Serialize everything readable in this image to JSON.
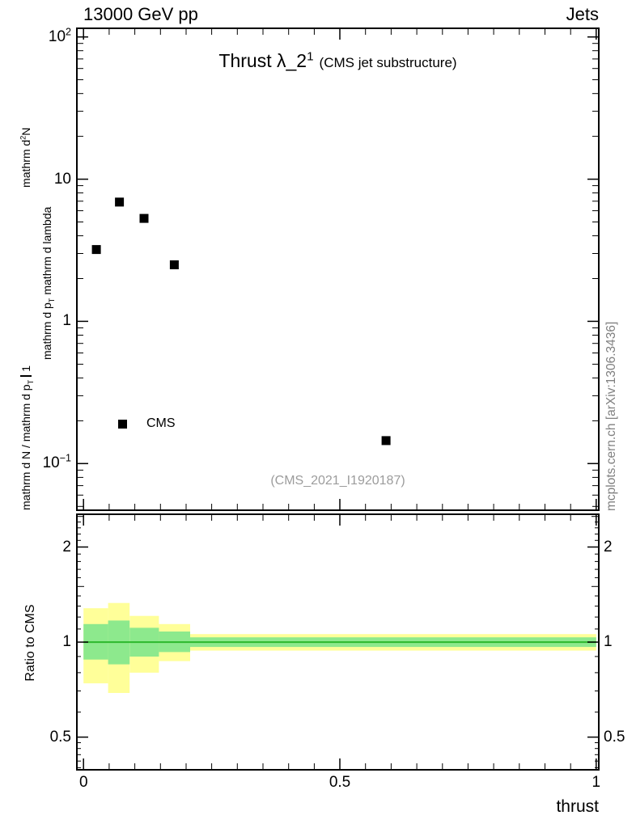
{
  "header": {
    "left": "13000 GeV pp",
    "right": "Jets"
  },
  "main_panel": {
    "title": "Thrust λ_2^{1}",
    "subtitle": "(CMS jet substructure)",
    "legend_label": "CMS",
    "watermark": "(CMS_2021_I1920187)"
  },
  "yaxis_label": {
    "frac1_num": "1",
    "frac1_den": "mathrm d N / mathrm d p_{T}",
    "frac2_num": "mathrm d^{2}N",
    "frac2_den": "mathrm d p_{T} mathrm d lambda"
  },
  "ratio_panel": {
    "ylabel": "Ratio to CMS"
  },
  "credit": "mcplots.cern.ch [arXiv:1306.3436]",
  "xaxis_title": "thrust",
  "chart_data": {
    "type": "scatter",
    "title": "Thrust λ_2^1 (CMS jet substructure)",
    "xlabel": "thrust",
    "ylabel": "1 / (dN/dp_T) · d²N / (dp_T dλ)",
    "legend": [
      "CMS"
    ],
    "xlim": [
      -0.013,
      1.005
    ],
    "x_ticks": [
      {
        "v": 0,
        "label": "0"
      },
      {
        "v": 0.5,
        "label": "0.5"
      },
      {
        "v": 1,
        "label": "1"
      }
    ],
    "main": {
      "yscale": "log",
      "ylim": [
        0.047,
        115
      ],
      "y_ticks": [
        {
          "v": 100,
          "label": "10^{2}"
        },
        {
          "v": 10,
          "label": "10"
        },
        {
          "v": 1,
          "label": "1"
        },
        {
          "v": 0.1,
          "label": "10^{−1}"
        }
      ],
      "series": [
        {
          "name": "CMS",
          "marker": "filled-square",
          "points": [
            [
              0.025,
              3.2
            ],
            [
              0.07,
              6.9
            ],
            [
              0.118,
              5.3
            ],
            [
              0.177,
              2.5
            ],
            [
              0.59,
              0.145
            ]
          ]
        }
      ]
    },
    "ratio": {
      "yscale": "log",
      "ylim": [
        0.394,
        2.54
      ],
      "y_ticks": [
        {
          "v": 2,
          "label": "2"
        },
        {
          "v": 1,
          "label": "1"
        },
        {
          "v": 0.5,
          "label": "0.5"
        }
      ],
      "y_ticks_medium": [
        1.5,
        2.5
      ],
      "y_ticks_minor": [
        0.4,
        0.42,
        0.44,
        0.46,
        0.48,
        0.6,
        0.7,
        0.8,
        0.9,
        1.1,
        1.2,
        1.3,
        1.4,
        1.6,
        1.7,
        1.8,
        1.9,
        2.1,
        2.2,
        2.3,
        2.4
      ],
      "reference_line": 1.0,
      "line_x": [
        0,
        1
      ],
      "bands": [
        {
          "x": [
            0,
            0.048
          ],
          "yellow": [
            0.74,
            1.28
          ],
          "green": [
            0.88,
            1.14
          ]
        },
        {
          "x": [
            0.048,
            0.09
          ],
          "yellow": [
            0.69,
            1.33
          ],
          "green": [
            0.85,
            1.17
          ]
        },
        {
          "x": [
            0.09,
            0.147
          ],
          "yellow": [
            0.8,
            1.21
          ],
          "green": [
            0.9,
            1.11
          ]
        },
        {
          "x": [
            0.147,
            0.208
          ],
          "yellow": [
            0.87,
            1.14
          ],
          "green": [
            0.93,
            1.08
          ]
        },
        {
          "x": [
            0.208,
            1.0
          ],
          "yellow": [
            0.94,
            1.06
          ],
          "green": [
            0.965,
            1.035
          ]
        }
      ]
    },
    "colors": {
      "band_yellow": "#ffff99",
      "band_green": "#8de98d",
      "ref_line": "#2db92d",
      "marker": "#000000"
    }
  }
}
